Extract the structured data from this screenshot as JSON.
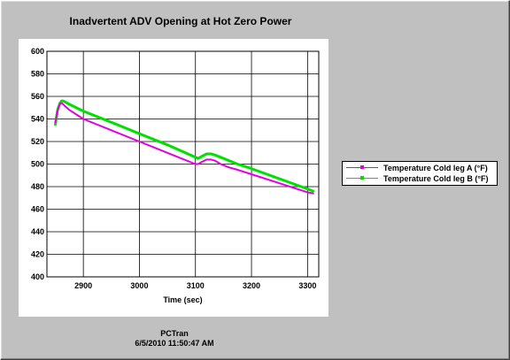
{
  "chart_data": {
    "type": "line",
    "title": "Inadvertent ADV Opening at Hot Zero Power",
    "xlabel": "Time (sec)",
    "ylabel": "",
    "xlim": [
      2835,
      3320
    ],
    "ylim": [
      400,
      600
    ],
    "x_ticks": [
      2900,
      3000,
      3100,
      3200,
      3300
    ],
    "y_ticks": [
      400,
      420,
      440,
      460,
      480,
      500,
      520,
      540,
      560,
      580,
      600
    ],
    "grid": true,
    "legend_position": "right",
    "series": [
      {
        "name": "Temperature Cold leg A (°F)",
        "color": "#e000e0",
        "x": [
          2850,
          2854,
          2857,
          2860,
          2862,
          2866,
          2875,
          2900,
          2950,
          3000,
          3050,
          3100,
          3105,
          3112,
          3120,
          3128,
          3135,
          3145,
          3160,
          3175,
          3200,
          3250,
          3300,
          3310
        ],
        "y": [
          537,
          547,
          552,
          554,
          554,
          552,
          548,
          540,
          530,
          520,
          510,
          500,
          500,
          502,
          504,
          504,
          503,
          500,
          497,
          495,
          491,
          483,
          475,
          474
        ]
      },
      {
        "name": "Temperature Cold leg B (°F)",
        "color": "#00e000",
        "x": [
          2850,
          2854,
          2858,
          2861,
          2864,
          2868,
          2875,
          2900,
          2950,
          3000,
          3050,
          3100,
          3105,
          3112,
          3120,
          3128,
          3135,
          3145,
          3160,
          3175,
          3200,
          3250,
          3300,
          3310
        ],
        "y": [
          535,
          548,
          554,
          556,
          556,
          555,
          553,
          547,
          537,
          527,
          517,
          506,
          505,
          507,
          509,
          509,
          508,
          506,
          503,
          500,
          496,
          487,
          478,
          476
        ]
      }
    ]
  },
  "footer": {
    "app_name": "PCTran",
    "timestamp": "6/5/2010 11:50:47 AM"
  }
}
